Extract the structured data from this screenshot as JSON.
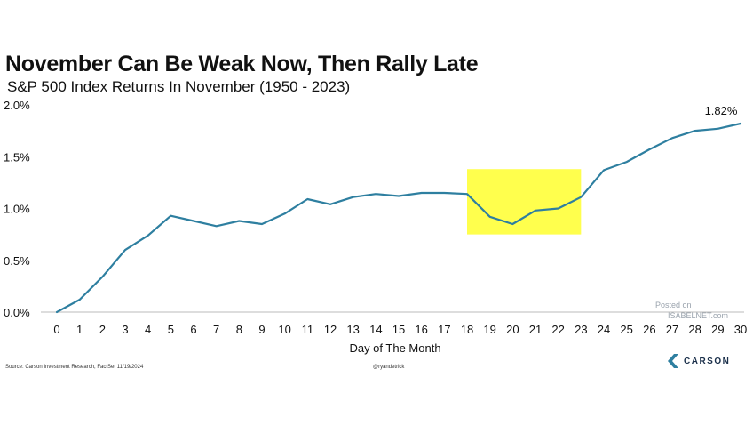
{
  "chart_data": {
    "type": "line",
    "title": "November Can Be Weak Now, Then Rally Late",
    "subtitle": "S&P 500 Index Returns In November (1950 - 2023)",
    "xlabel": "Day of The Month",
    "ylabel": "",
    "x": [
      0,
      1,
      2,
      3,
      4,
      5,
      6,
      7,
      8,
      9,
      10,
      11,
      12,
      13,
      14,
      15,
      16,
      17,
      18,
      19,
      20,
      21,
      22,
      23,
      24,
      25,
      26,
      27,
      28,
      29,
      30
    ],
    "series": [
      {
        "values": [
          0.0,
          0.12,
          0.34,
          0.6,
          0.74,
          0.93,
          0.88,
          0.83,
          0.88,
          0.85,
          0.95,
          1.09,
          1.04,
          1.11,
          1.14,
          1.12,
          1.15,
          1.15,
          1.14,
          0.92,
          0.85,
          0.98,
          1.0,
          1.11,
          1.37,
          1.45,
          1.57,
          1.68,
          1.75,
          1.77,
          1.82
        ],
        "color": "#2e7fa0"
      }
    ],
    "ylim": [
      0,
      2.0
    ],
    "yticks": [
      "0.0%",
      "0.5%",
      "1.0%",
      "1.5%",
      "2.0%"
    ],
    "ytick_values": [
      0,
      0.5,
      1.0,
      1.5,
      2.0
    ],
    "annotations": [
      {
        "label": "1.82%",
        "x": 30,
        "y": 1.82
      },
      {
        "type": "highlight",
        "x_from": 18,
        "x_to": 23,
        "y_from": 0.75,
        "y_to": 1.38,
        "color": "#ffff4d"
      }
    ],
    "grid": false
  },
  "footer": {
    "source": "Source: Carson Investment Research, FactSet 11/19/2024",
    "handle": "@ryandetrick",
    "watermark_posted": "Posted on",
    "watermark_site": "ISABELNET.com",
    "logo_text": "CARSON"
  }
}
